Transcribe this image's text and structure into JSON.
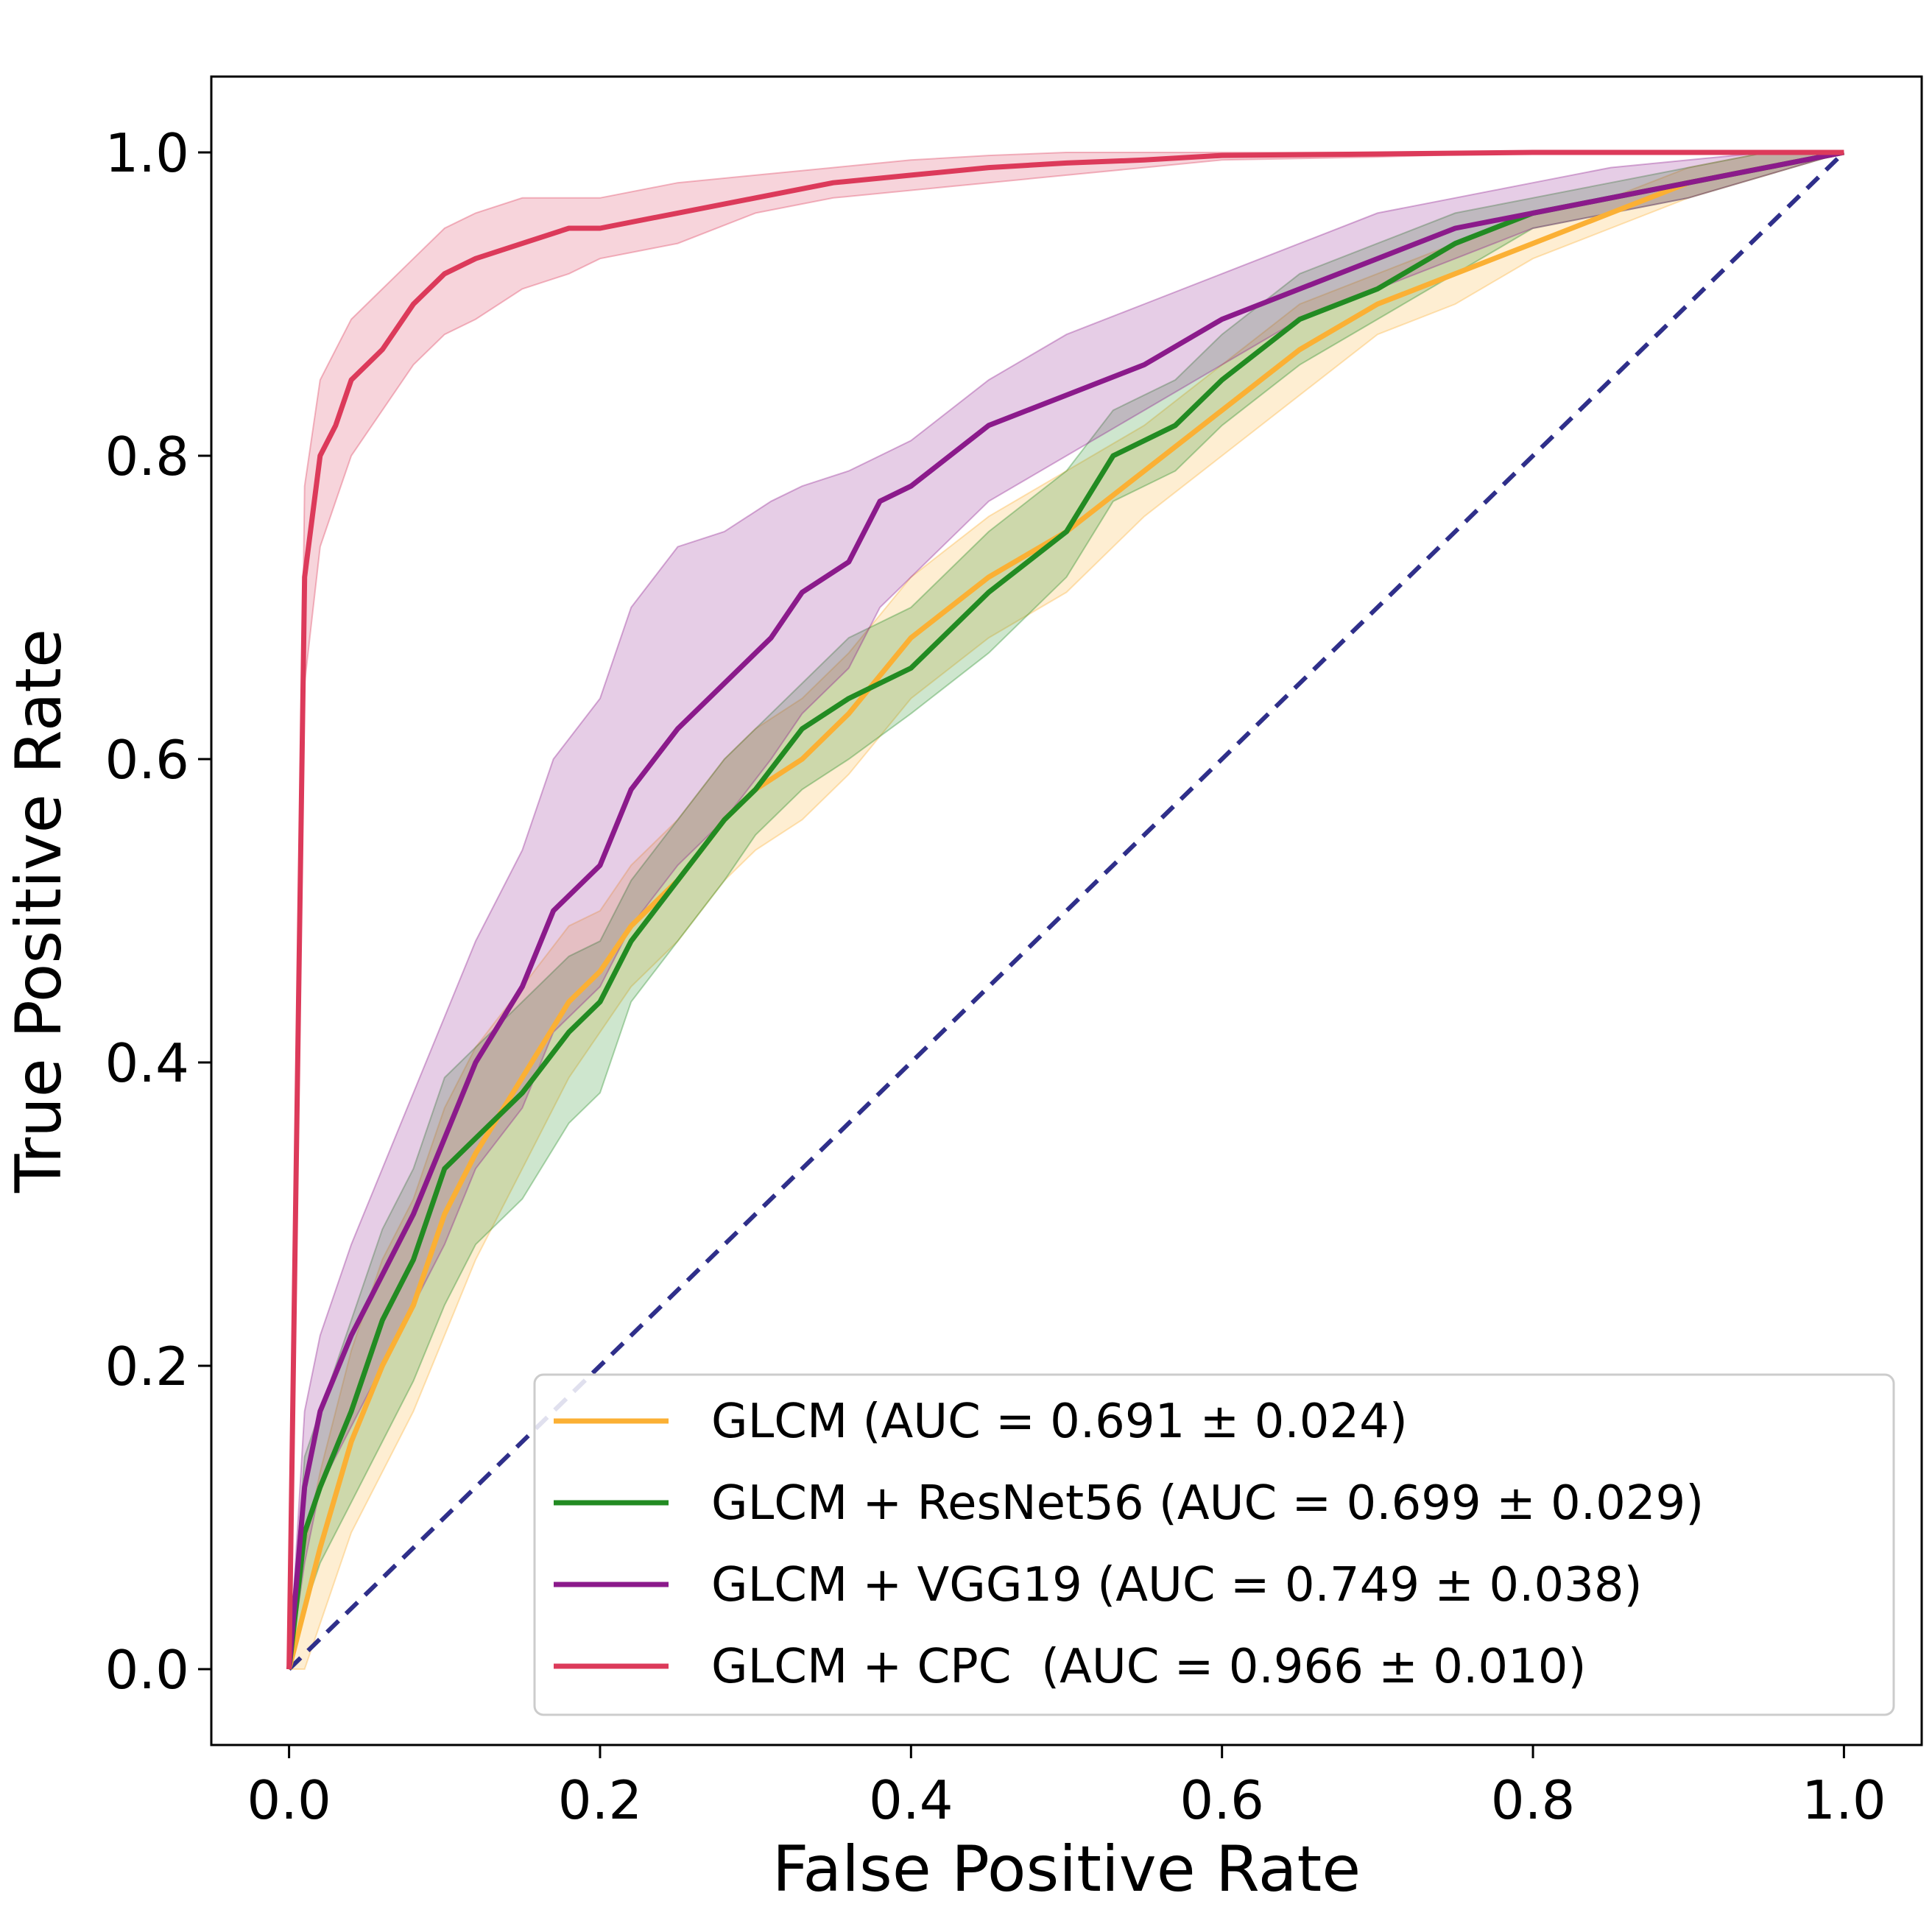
{
  "chart_data": {
    "type": "line",
    "title": "",
    "xlabel": "False Positive Rate",
    "ylabel": "True Positive Rate",
    "xlim": [
      -0.05,
      1.05
    ],
    "ylim": [
      -0.05,
      1.05
    ],
    "xticks": [
      0.0,
      0.2,
      0.4,
      0.6,
      0.8,
      1.0
    ],
    "yticks": [
      0.0,
      0.2,
      0.4,
      0.6,
      0.8,
      1.0
    ],
    "xtick_labels": [
      "0.0",
      "0.2",
      "0.4",
      "0.6",
      "0.8",
      "1.0"
    ],
    "ytick_labels": [
      "0.0",
      "0.2",
      "0.4",
      "0.6",
      "0.8",
      "1.0"
    ],
    "legend_position": "lower-right",
    "diagonal": {
      "x": [
        0,
        1
      ],
      "y": [
        0,
        1
      ],
      "color": "#2f2f8a",
      "style": "dashed"
    },
    "series": [
      {
        "name": "GLCM (AUC = 0.691 ± 0.024)",
        "color": "#fbb034",
        "x": [
          0,
          0.01,
          0.02,
          0.04,
          0.06,
          0.08,
          0.1,
          0.12,
          0.15,
          0.18,
          0.2,
          0.22,
          0.25,
          0.28,
          0.3,
          0.33,
          0.36,
          0.4,
          0.45,
          0.5,
          0.55,
          0.6,
          0.65,
          0.7,
          0.75,
          0.8,
          0.85,
          0.9,
          0.95,
          1.0
        ],
        "y": [
          0,
          0.04,
          0.08,
          0.15,
          0.2,
          0.24,
          0.3,
          0.34,
          0.39,
          0.44,
          0.46,
          0.49,
          0.52,
          0.56,
          0.58,
          0.6,
          0.63,
          0.68,
          0.72,
          0.75,
          0.79,
          0.83,
          0.87,
          0.9,
          0.92,
          0.94,
          0.96,
          0.98,
          0.99,
          1.0
        ],
        "lower": [
          0,
          0.0,
          0.03,
          0.09,
          0.13,
          0.17,
          0.22,
          0.27,
          0.33,
          0.39,
          0.42,
          0.45,
          0.48,
          0.52,
          0.54,
          0.56,
          0.59,
          0.64,
          0.68,
          0.71,
          0.76,
          0.8,
          0.84,
          0.88,
          0.9,
          0.93,
          0.95,
          0.97,
          0.985,
          1.0
        ],
        "upper": [
          0,
          0.08,
          0.13,
          0.21,
          0.27,
          0.31,
          0.37,
          0.41,
          0.45,
          0.49,
          0.5,
          0.53,
          0.56,
          0.6,
          0.62,
          0.64,
          0.67,
          0.72,
          0.76,
          0.79,
          0.82,
          0.86,
          0.9,
          0.92,
          0.94,
          0.96,
          0.97,
          0.99,
          1.0,
          1.0
        ]
      },
      {
        "name": "GLCM + ResNet56 (AUC = 0.699 ± 0.029)",
        "color": "#228b22",
        "x": [
          0,
          0.01,
          0.02,
          0.04,
          0.06,
          0.08,
          0.1,
          0.12,
          0.15,
          0.18,
          0.2,
          0.22,
          0.25,
          0.28,
          0.3,
          0.33,
          0.36,
          0.4,
          0.45,
          0.5,
          0.53,
          0.57,
          0.6,
          0.65,
          0.7,
          0.75,
          0.8,
          0.85,
          0.9,
          0.95,
          1.0
        ],
        "y": [
          0,
          0.09,
          0.12,
          0.17,
          0.23,
          0.27,
          0.33,
          0.35,
          0.38,
          0.42,
          0.44,
          0.48,
          0.52,
          0.56,
          0.58,
          0.62,
          0.64,
          0.66,
          0.71,
          0.75,
          0.8,
          0.82,
          0.85,
          0.89,
          0.91,
          0.94,
          0.96,
          0.97,
          0.98,
          0.99,
          1.0
        ],
        "lower": [
          0,
          0.04,
          0.07,
          0.11,
          0.15,
          0.19,
          0.24,
          0.28,
          0.31,
          0.36,
          0.38,
          0.44,
          0.48,
          0.52,
          0.55,
          0.58,
          0.6,
          0.63,
          0.67,
          0.72,
          0.77,
          0.79,
          0.82,
          0.86,
          0.89,
          0.92,
          0.95,
          0.96,
          0.97,
          0.985,
          1.0
        ],
        "upper": [
          0,
          0.14,
          0.17,
          0.23,
          0.29,
          0.33,
          0.39,
          0.41,
          0.44,
          0.47,
          0.48,
          0.52,
          0.56,
          0.6,
          0.62,
          0.65,
          0.68,
          0.7,
          0.75,
          0.79,
          0.83,
          0.85,
          0.88,
          0.92,
          0.94,
          0.96,
          0.97,
          0.98,
          0.99,
          1.0,
          1.0
        ]
      },
      {
        "name": "GLCM + VGG19 (AUC = 0.749 ± 0.038)",
        "color": "#8b1a8b",
        "x": [
          0,
          0.01,
          0.02,
          0.04,
          0.06,
          0.08,
          0.1,
          0.12,
          0.15,
          0.17,
          0.2,
          0.22,
          0.25,
          0.28,
          0.31,
          0.33,
          0.36,
          0.38,
          0.4,
          0.45,
          0.5,
          0.55,
          0.6,
          0.65,
          0.7,
          0.75,
          0.8,
          0.85,
          0.9,
          0.95,
          1.0
        ],
        "y": [
          0,
          0.12,
          0.17,
          0.22,
          0.26,
          0.3,
          0.35,
          0.4,
          0.45,
          0.5,
          0.53,
          0.58,
          0.62,
          0.65,
          0.68,
          0.71,
          0.73,
          0.77,
          0.78,
          0.82,
          0.84,
          0.86,
          0.89,
          0.91,
          0.93,
          0.95,
          0.96,
          0.97,
          0.98,
          0.99,
          1.0
        ],
        "lower": [
          0,
          0.07,
          0.12,
          0.16,
          0.2,
          0.24,
          0.28,
          0.33,
          0.37,
          0.42,
          0.45,
          0.49,
          0.53,
          0.56,
          0.6,
          0.63,
          0.66,
          0.7,
          0.72,
          0.77,
          0.8,
          0.83,
          0.86,
          0.89,
          0.91,
          0.93,
          0.95,
          0.96,
          0.97,
          0.985,
          1.0
        ],
        "upper": [
          0,
          0.17,
          0.22,
          0.28,
          0.33,
          0.38,
          0.43,
          0.48,
          0.54,
          0.6,
          0.64,
          0.7,
          0.74,
          0.75,
          0.77,
          0.78,
          0.79,
          0.8,
          0.81,
          0.85,
          0.88,
          0.9,
          0.92,
          0.94,
          0.96,
          0.97,
          0.98,
          0.99,
          0.995,
          1.0,
          1.0
        ]
      },
      {
        "name": "GLCM + CPC  (AUC = 0.966 ± 0.010)",
        "color": "#dc3a5a",
        "x": [
          0,
          0.01,
          0.02,
          0.03,
          0.04,
          0.06,
          0.08,
          0.1,
          0.12,
          0.15,
          0.18,
          0.2,
          0.25,
          0.3,
          0.35,
          0.4,
          0.45,
          0.5,
          0.55,
          0.6,
          0.7,
          0.8,
          0.9,
          1.0
        ],
        "y": [
          0,
          0.72,
          0.8,
          0.82,
          0.85,
          0.87,
          0.9,
          0.92,
          0.93,
          0.94,
          0.95,
          0.95,
          0.96,
          0.97,
          0.98,
          0.985,
          0.99,
          0.993,
          0.995,
          0.998,
          0.999,
          1.0,
          1.0,
          1.0
        ],
        "lower": [
          0,
          0.65,
          0.74,
          0.77,
          0.8,
          0.83,
          0.86,
          0.88,
          0.89,
          0.91,
          0.92,
          0.93,
          0.94,
          0.96,
          0.97,
          0.975,
          0.98,
          0.985,
          0.99,
          0.995,
          0.997,
          1.0,
          1.0,
          1.0
        ],
        "upper": [
          0,
          0.78,
          0.85,
          0.87,
          0.89,
          0.91,
          0.93,
          0.95,
          0.96,
          0.97,
          0.97,
          0.97,
          0.98,
          0.985,
          0.99,
          0.995,
          0.998,
          1.0,
          1.0,
          1.0,
          1.0,
          1.0,
          1.0,
          1.0
        ]
      }
    ]
  }
}
